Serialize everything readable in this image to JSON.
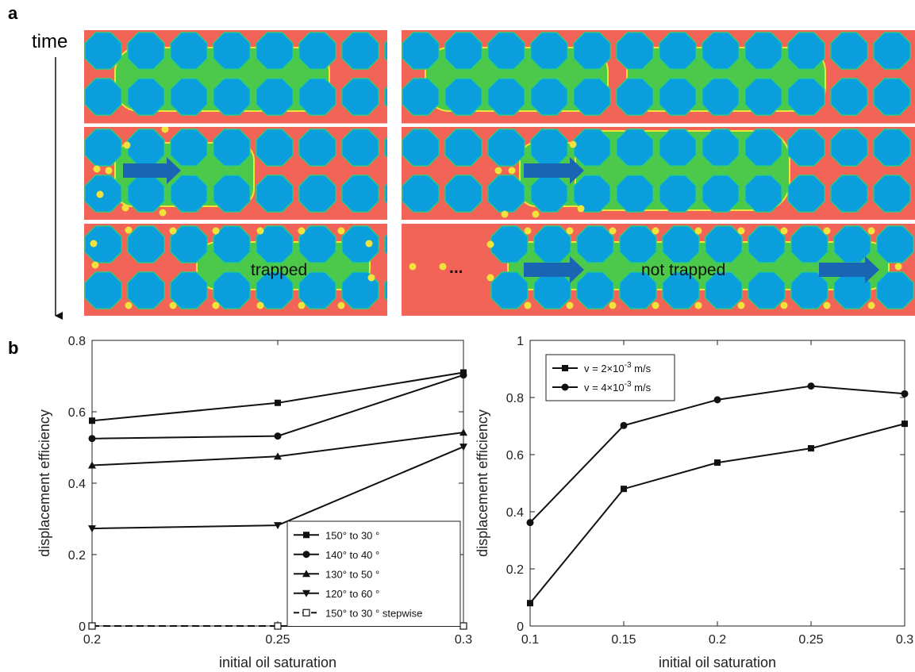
{
  "panel_a": {
    "label": "a",
    "time_label": "time",
    "annotation_trapped": "trapped",
    "annotation_not_trapped": "not trapped",
    "ellipsis": "...",
    "colors": {
      "background": "#f26457",
      "grain": "#0a9fdc",
      "oil": "#4cc84a",
      "interface": "#f2e33c",
      "arrow": "#1a64b4"
    }
  },
  "panel_b": {
    "label": "b"
  },
  "chart_data": [
    {
      "type": "line",
      "xlabel": "initial oil saturation",
      "ylabel": "displacement efficiency",
      "xlim": [
        0.2,
        0.3
      ],
      "ylim": [
        0,
        0.8
      ],
      "xticks": [
        0.2,
        0.25,
        0.3
      ],
      "xtick_labels": [
        "0.2",
        "0.25",
        "0.3"
      ],
      "yticks": [
        0,
        0.2,
        0.4,
        0.6,
        0.8
      ],
      "ytick_labels": [
        "0",
        "0.2",
        "0.4",
        "0.6",
        "0.8"
      ],
      "grid": false,
      "legend_position": "bottom-right",
      "x": [
        0.2,
        0.25,
        0.3
      ],
      "series": [
        {
          "name": "150° to 30 °",
          "values": [
            0.575,
            0.625,
            0.71
          ],
          "marker": "square",
          "dash": false
        },
        {
          "name": "140° to 40 °",
          "values": [
            0.525,
            0.532,
            0.703
          ],
          "marker": "circle",
          "dash": false
        },
        {
          "name": "130° to 50 °",
          "values": [
            0.45,
            0.475,
            0.542
          ],
          "marker": "triangle-up",
          "dash": false
        },
        {
          "name": "120° to 60 °",
          "values": [
            0.273,
            0.282,
            0.502
          ],
          "marker": "triangle-down",
          "dash": false
        },
        {
          "name": "150° to 30 ° stepwise",
          "values": [
            0,
            0,
            0
          ],
          "marker": "square-open",
          "dash": true
        }
      ]
    },
    {
      "type": "line",
      "xlabel": "initial oil saturation",
      "ylabel": "displacement efficiency",
      "xlim": [
        0.1,
        0.3
      ],
      "ylim": [
        0,
        1
      ],
      "xticks": [
        0.1,
        0.15,
        0.2,
        0.25,
        0.3
      ],
      "xtick_labels": [
        "0.1",
        "0.15",
        "0.2",
        "0.25",
        "0.3"
      ],
      "yticks": [
        0,
        0.2,
        0.4,
        0.6,
        0.8,
        1
      ],
      "ytick_labels": [
        "0",
        "0.2",
        "0.4",
        "0.6",
        "0.8",
        "1"
      ],
      "grid": false,
      "legend_position": "top-left",
      "x": [
        0.1,
        0.15,
        0.2,
        0.25,
        0.3
      ],
      "series": [
        {
          "name_prefix": "v = 2×10",
          "name_exp": "-3",
          "name_suffix": " m/s",
          "values": [
            0.08,
            0.48,
            0.572,
            0.622,
            0.708
          ],
          "marker": "square",
          "dash": false
        },
        {
          "name_prefix": "v = 4×10",
          "name_exp": "-3",
          "name_suffix": " m/s",
          "values": [
            0.362,
            0.702,
            0.792,
            0.84,
            0.813
          ],
          "marker": "circle",
          "dash": false
        }
      ]
    }
  ]
}
